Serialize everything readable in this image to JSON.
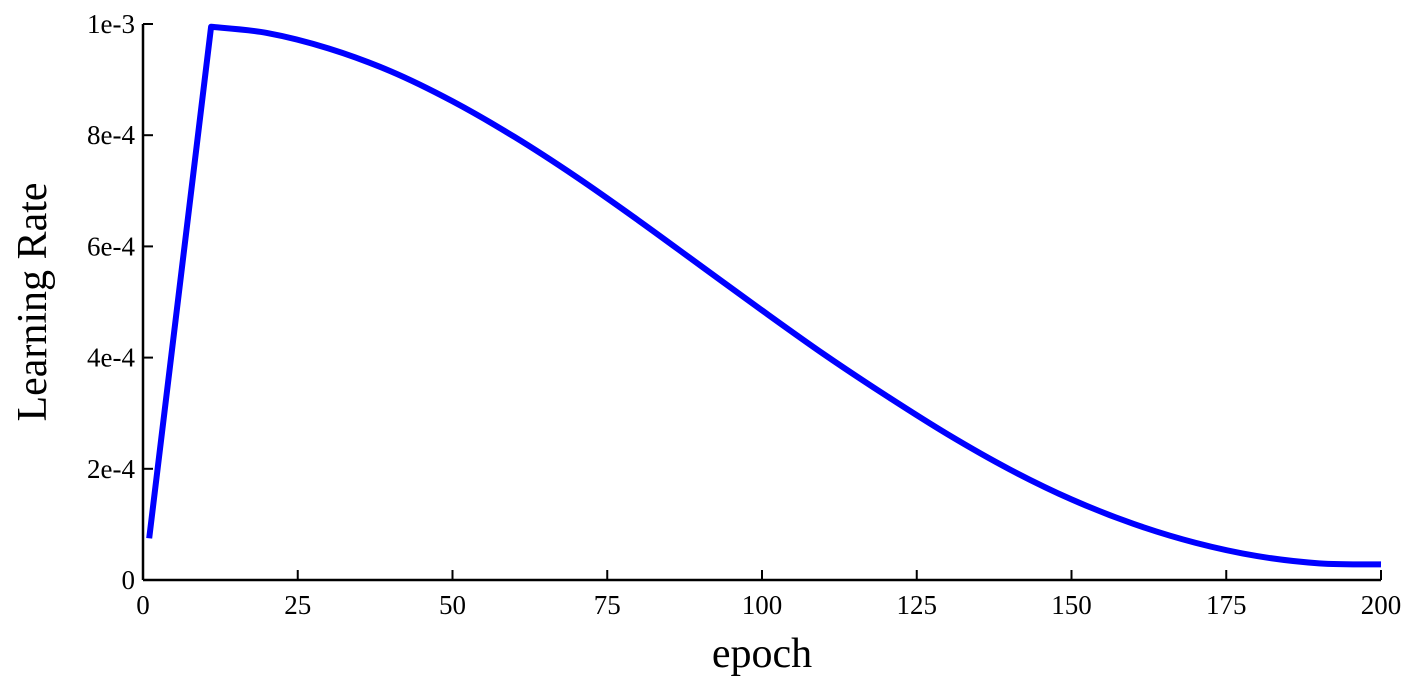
{
  "chart_data": {
    "type": "line",
    "title": "",
    "xlabel": "epoch",
    "ylabel": "Learning Rate",
    "xlim": [
      0,
      200
    ],
    "ylim": [
      0,
      0.001
    ],
    "x_ticks": [
      0,
      25,
      50,
      75,
      100,
      125,
      150,
      175,
      200
    ],
    "x_tick_labels": [
      "0",
      "25",
      "50",
      "75",
      "100",
      "125",
      "150",
      "175",
      "200"
    ],
    "y_ticks": [
      0,
      0.0002,
      0.0004,
      0.0006,
      0.0008,
      0.001
    ],
    "y_tick_labels": [
      "0",
      "2e-4",
      "4e-4",
      "6e-4",
      "8e-4",
      "1e-3"
    ],
    "grid": false,
    "legend": "none",
    "series": [
      {
        "color": "#0000ff",
        "x": [
          1,
          11,
          20,
          30,
          40,
          50,
          60,
          70,
          80,
          90,
          100,
          110,
          120,
          130,
          140,
          150,
          160,
          170,
          180,
          190,
          200
        ],
        "values": [
          7.5e-05,
          0.000995,
          0.000984,
          0.000956,
          0.000915,
          0.000861,
          0.000797,
          0.000725,
          0.000647,
          0.000566,
          0.000485,
          0.000406,
          0.000332,
          0.000262,
          0.000199,
          0.000145,
          0.000101,
          6.7e-05,
          4.3e-05,
          3e-05,
          2.8e-05
        ]
      }
    ]
  }
}
